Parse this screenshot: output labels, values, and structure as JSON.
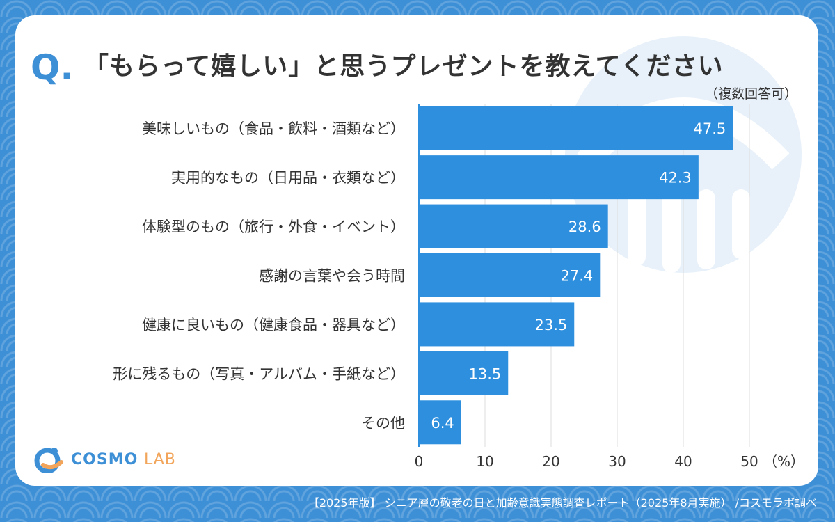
{
  "header": {
    "q_mark": "Q.",
    "title": "「もらって嬉しい」と思うプレゼントを教えてください",
    "subtitle": "（複数回答可）"
  },
  "logo": {
    "part1": "COSMO",
    "part2": "LAB"
  },
  "footer": {
    "source": "【2025年版】 シニア層の敬老の日と加齢意識実態調査レポート（2025年8月実施） /コスモラボ調べ"
  },
  "colors": {
    "bar": "#2e8fde",
    "background": "#3d8fd6",
    "accent_orange": "#f2a55a",
    "grid": "#dddddd",
    "text": "#333333"
  },
  "chart_data": {
    "type": "bar",
    "orientation": "horizontal",
    "categories": [
      "美味しいもの（食品・飲料・酒類など）",
      "実用的なもの（日用品・衣類など）",
      "体験型のもの（旅行・外食・イベント）",
      "感謝の言葉や会う時間",
      "健康に良いもの（健康食品・器具など）",
      "形に残るもの（写真・アルバム・手紙など）",
      "その他"
    ],
    "values": [
      47.5,
      42.3,
      28.6,
      27.4,
      23.5,
      13.5,
      6.4
    ],
    "value_labels": [
      "47.5",
      "42.3",
      "28.6",
      "27.4",
      "23.5",
      "13.5",
      "6.4"
    ],
    "xlim": [
      0,
      50
    ],
    "xticks": [
      "0",
      "10",
      "20",
      "30",
      "40",
      "50"
    ],
    "unit": "（%）",
    "grid": true
  }
}
